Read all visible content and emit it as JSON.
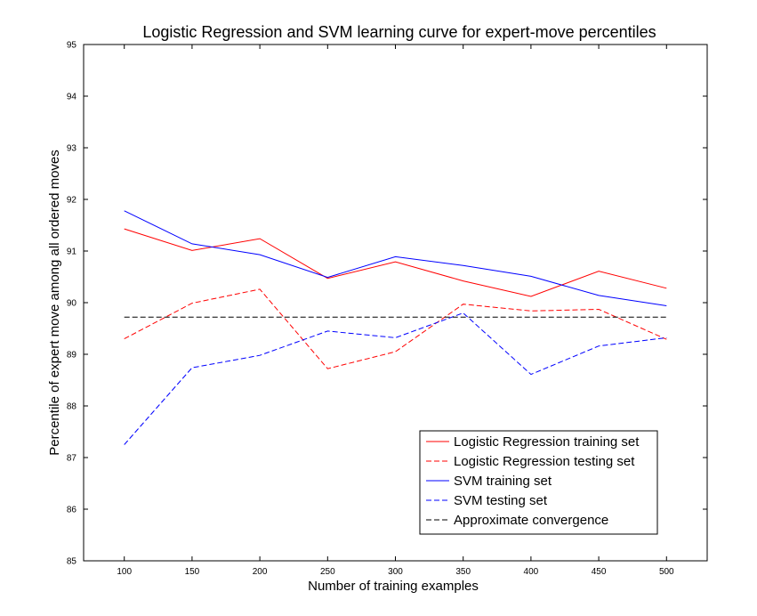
{
  "chart_data": {
    "type": "line",
    "title": "Logistic Regression and SVM learning curve for expert-move percentiles",
    "xlabel": "Number of training examples",
    "ylabel": "Percentile of expert move among all ordered moves",
    "xlim": [
      70,
      530
    ],
    "ylim": [
      85,
      95
    ],
    "x_ticks": [
      100,
      150,
      200,
      250,
      300,
      350,
      400,
      450,
      500
    ],
    "y_ticks": [
      85,
      86,
      87,
      88,
      89,
      90,
      91,
      92,
      93,
      94,
      95
    ],
    "grid": false,
    "legend_position": "bottom-right",
    "x": [
      100,
      150,
      200,
      250,
      300,
      350,
      400,
      450,
      500
    ],
    "series": [
      {
        "name": "Logistic Regression training set",
        "color": "#ff0000",
        "style": "solid",
        "values": [
          91.43,
          91.01,
          91.24,
          90.47,
          90.79,
          90.42,
          90.12,
          90.61,
          90.28
        ]
      },
      {
        "name": "Logistic Regression testing set",
        "color": "#ff0000",
        "style": "dashed",
        "values": [
          89.3,
          89.99,
          90.26,
          88.72,
          89.05,
          89.97,
          89.84,
          89.87,
          89.29
        ]
      },
      {
        "name": "SVM training set",
        "color": "#0000ff",
        "style": "solid",
        "values": [
          91.78,
          91.14,
          90.93,
          90.49,
          90.89,
          90.72,
          90.51,
          90.14,
          89.94
        ]
      },
      {
        "name": "SVM testing set",
        "color": "#0000ff",
        "style": "dashed",
        "values": [
          87.25,
          88.74,
          88.98,
          89.45,
          89.32,
          89.8,
          88.61,
          89.16,
          89.32
        ]
      },
      {
        "name": "Approximate convergence",
        "color": "#000000",
        "style": "dashed",
        "values": [
          89.72,
          89.72,
          89.72,
          89.72,
          89.72,
          89.72,
          89.72,
          89.72,
          89.72
        ]
      }
    ]
  }
}
